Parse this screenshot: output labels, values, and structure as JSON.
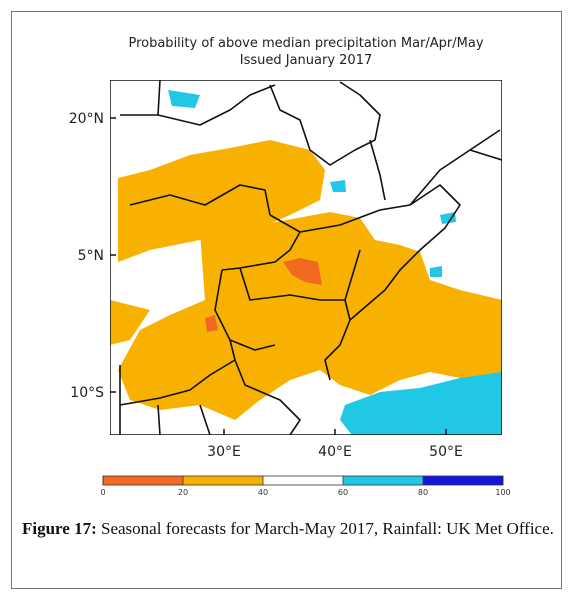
{
  "figure": {
    "title_lines": [
      "Probability of above median precipitation Mar/Apr/May",
      "Issued January 2017"
    ],
    "lat_labels": [
      "20°N",
      "5°N",
      "10°S"
    ],
    "lon_labels": [
      "30°E",
      "40°E",
      "50°E"
    ],
    "colorbar": {
      "ticks": [
        0,
        20,
        40,
        60,
        80,
        100
      ],
      "colors": [
        "#f26a21",
        "#f8b100",
        "#ffffff",
        "#21c8e6",
        "#1515e0"
      ]
    },
    "caption_label": "Figure 17:",
    "caption_text": "Seasonal forecasts for March-May 2017, Rainfall: UK Met Office."
  }
}
